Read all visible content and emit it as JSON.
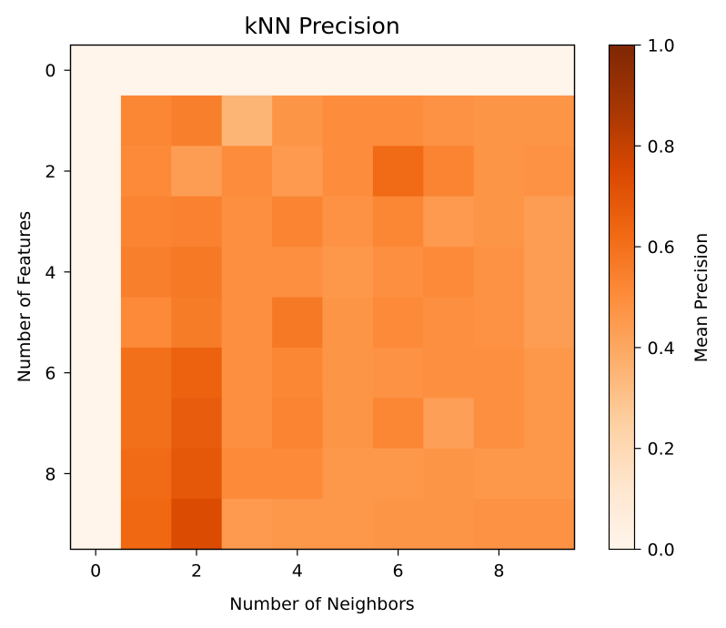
{
  "chart_data": {
    "type": "heatmap",
    "title": "kNN Precision",
    "xlabel": "Number of Neighbors",
    "ylabel": "Number of Features",
    "x": [
      0,
      1,
      2,
      3,
      4,
      5,
      6,
      7,
      8,
      9
    ],
    "y": [
      0,
      1,
      2,
      3,
      4,
      5,
      6,
      7,
      8,
      9
    ],
    "x_ticks": [
      0,
      2,
      4,
      6,
      8
    ],
    "y_ticks": [
      0,
      2,
      4,
      6,
      8
    ],
    "values": [
      [
        0.0,
        0.0,
        0.0,
        0.0,
        0.0,
        0.0,
        0.0,
        0.0,
        0.0,
        0.0
      ],
      [
        0.0,
        0.52,
        0.55,
        0.35,
        0.47,
        0.5,
        0.5,
        0.48,
        0.47,
        0.47
      ],
      [
        0.0,
        0.51,
        0.44,
        0.5,
        0.45,
        0.5,
        0.62,
        0.53,
        0.47,
        0.48
      ],
      [
        0.0,
        0.53,
        0.54,
        0.49,
        0.53,
        0.48,
        0.52,
        0.45,
        0.47,
        0.44
      ],
      [
        0.0,
        0.55,
        0.57,
        0.49,
        0.49,
        0.46,
        0.49,
        0.51,
        0.48,
        0.44
      ],
      [
        0.0,
        0.51,
        0.56,
        0.49,
        0.57,
        0.47,
        0.51,
        0.49,
        0.48,
        0.44
      ],
      [
        0.0,
        0.6,
        0.65,
        0.49,
        0.52,
        0.47,
        0.48,
        0.49,
        0.49,
        0.46
      ],
      [
        0.0,
        0.6,
        0.67,
        0.49,
        0.53,
        0.47,
        0.52,
        0.43,
        0.49,
        0.46
      ],
      [
        0.0,
        0.62,
        0.69,
        0.51,
        0.51,
        0.46,
        0.46,
        0.47,
        0.46,
        0.46
      ],
      [
        0.0,
        0.63,
        0.74,
        0.45,
        0.46,
        0.46,
        0.47,
        0.47,
        0.48,
        0.48
      ]
    ],
    "colormap": "Oranges",
    "colorbar": {
      "label": "Mean Precision",
      "range": [
        0.0,
        1.0
      ],
      "ticks": [
        "0.0",
        "0.2",
        "0.4",
        "0.6",
        "0.8",
        "1.0"
      ]
    },
    "grid": false
  }
}
